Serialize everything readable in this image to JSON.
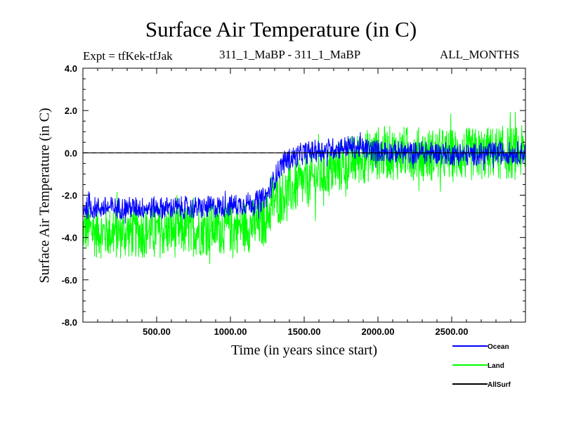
{
  "chart_data": {
    "type": "line",
    "title": "Surface Air Temperature (in C)",
    "subtitle_left": "Expt = tfKek-tfJak",
    "subtitle_center": "311_1_MaBP - 311_1_MaBP",
    "subtitle_right": "ALL_MONTHS",
    "xlabel": "Time (in years since start)",
    "ylabel": "Surface Air Temperature (in C)",
    "xlim": [
      0,
      3000
    ],
    "ylim": [
      -8,
      4
    ],
    "x_ticks": [
      500,
      1000,
      1500,
      2000,
      2500
    ],
    "x_tick_labels": [
      "500.00",
      "1000.00",
      "1500.00",
      "2000.00",
      "2500.00"
    ],
    "y_ticks": [
      -8,
      -6,
      -4,
      -2,
      0,
      2,
      4
    ],
    "y_tick_labels": [
      "-8.0",
      "-6.0",
      "-4.0",
      "-2.0",
      "0.0",
      "2.0",
      "4.0"
    ],
    "zero_line": {
      "y": 0,
      "style": "dashed"
    },
    "series": [
      {
        "name": "Land",
        "color": "#00ff00",
        "x": [
          0,
          200,
          400,
          600,
          800,
          1000,
          1200,
          1250,
          1300,
          1400,
          1500,
          1600,
          1700,
          1800,
          1900,
          2000,
          2200,
          2400,
          2600,
          2800,
          3000
        ],
        "y": [
          -3.6,
          -3.8,
          -3.7,
          -3.7,
          -3.6,
          -3.5,
          -3.4,
          -3.0,
          -2.2,
          -1.8,
          -1.4,
          -1.1,
          -0.8,
          -0.5,
          -0.2,
          0.0,
          0.0,
          -0.1,
          -0.1,
          0.0,
          0.0
        ],
        "noise_amplitude": 1.3
      },
      {
        "name": "Ocean",
        "color": "#0000ff",
        "x": [
          0,
          200,
          400,
          600,
          800,
          1000,
          1200,
          1250,
          1300,
          1350,
          1400,
          1500,
          1600,
          1700,
          1800,
          1900,
          2000,
          2200,
          2400,
          2600,
          2800,
          3000
        ],
        "y": [
          -2.6,
          -2.6,
          -2.6,
          -2.6,
          -2.6,
          -2.5,
          -2.3,
          -2.0,
          -1.2,
          -0.5,
          -0.3,
          0.0,
          0.1,
          0.2,
          0.3,
          0.2,
          0.1,
          0.0,
          0.0,
          -0.1,
          0.0,
          0.0
        ],
        "noise_amplitude": 0.55
      },
      {
        "name": "AllSurf",
        "color": "#000000",
        "x": [
          0,
          3000
        ],
        "y": [
          0,
          0
        ],
        "noise_amplitude": 0
      }
    ],
    "legend": {
      "placement": "bottom-right",
      "entries": [
        "Ocean",
        "Land",
        "AllSurf"
      ]
    },
    "grid": false
  }
}
